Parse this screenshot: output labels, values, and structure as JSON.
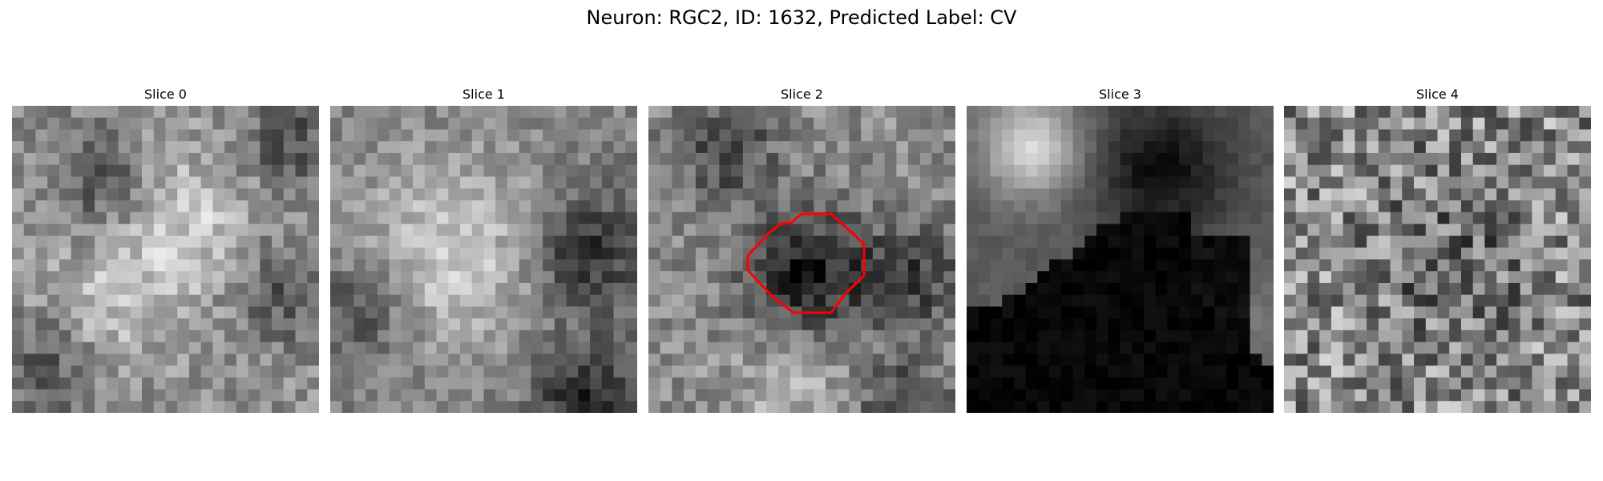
{
  "figure": {
    "title": "Neuron: RGC2, ID: 1632, Predicted Label: CV"
  },
  "colors": {
    "contour": "#ff0000",
    "background": "#ffffff"
  },
  "slices": [
    {
      "label": "Slice 0",
      "style": "blobby"
    },
    {
      "label": "Slice 1",
      "style": "bright-center"
    },
    {
      "label": "Slice 2",
      "style": "dark-cell"
    },
    {
      "label": "Slice 3",
      "style": "dark-corner"
    },
    {
      "label": "Slice 4",
      "style": "noisy"
    }
  ]
}
